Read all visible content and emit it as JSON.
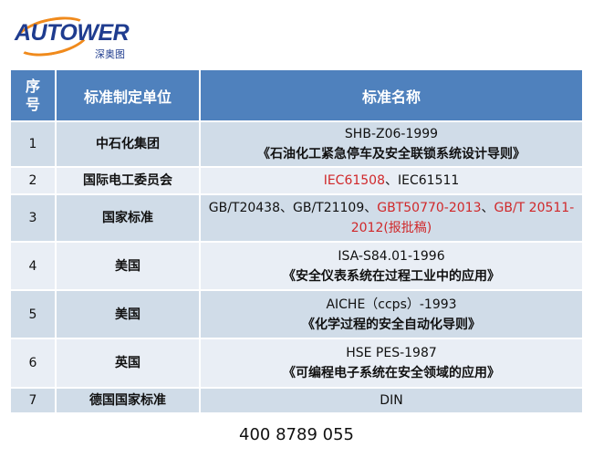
{
  "logo": {
    "text": "AUTOWER",
    "subtitle": "深奥图"
  },
  "table": {
    "headers": [
      "序号",
      "标准制定单位",
      "标准名称"
    ],
    "rows": [
      {
        "no": "1",
        "unit": "中石化集团",
        "name": [
          {
            "text": "SHB-Z06-1999",
            "red": false
          },
          {
            "text": "\n",
            "red": false
          },
          {
            "text": "《石油化工紧急停车及安全联锁系统设计导则》",
            "red": false
          }
        ],
        "height": 50
      },
      {
        "no": "2",
        "unit": "国际电工委员会",
        "name": [
          {
            "text": "IEC61508",
            "red": true
          },
          {
            "text": "、IEC61511",
            "red": false
          }
        ],
        "height": 30
      },
      {
        "no": "3",
        "unit": "国家标准",
        "name": [
          {
            "text": "GB/T20438、GB/T21109、",
            "red": false
          },
          {
            "text": "GBT50770-2013",
            "red": true
          },
          {
            "text": "、",
            "red": false
          },
          {
            "text": "GB/T 20511-2012(报批稿)",
            "red": true
          }
        ],
        "height": 52
      },
      {
        "no": "4",
        "unit": "美国",
        "name": [
          {
            "text": "ISA-S84.01-1996",
            "red": false
          },
          {
            "text": "\n",
            "red": false
          },
          {
            "text": "《安全仪表系统在过程工业中的应用》",
            "red": false
          }
        ],
        "height": 53
      },
      {
        "no": "5",
        "unit": "美国",
        "name": [
          {
            "text": "AICHE（ccps）-1993",
            "red": false
          },
          {
            "text": "\n",
            "red": false
          },
          {
            "text": "《化学过程的安全自动化导则》",
            "red": false
          }
        ],
        "height": 53
      },
      {
        "no": "6",
        "unit": "英国",
        "name": [
          {
            "text": "HSE PES-1987",
            "red": false
          },
          {
            "text": "\n",
            "red": false
          },
          {
            "text": "《可编程电子系统在安全领域的应用》",
            "red": false
          }
        ],
        "height": 54
      },
      {
        "no": "7",
        "unit": "德国国家标准",
        "name": [
          {
            "text": "DIN",
            "red": false
          }
        ],
        "height": 28
      }
    ]
  },
  "phone": "400 8789 055",
  "colors": {
    "header": "#4f81bd",
    "row_odd": "#d0dce8",
    "row_even": "#e9eef5",
    "highlight": "#d0282a",
    "logo": "#1f3c8f",
    "logo_accent": "#f08a1c"
  }
}
